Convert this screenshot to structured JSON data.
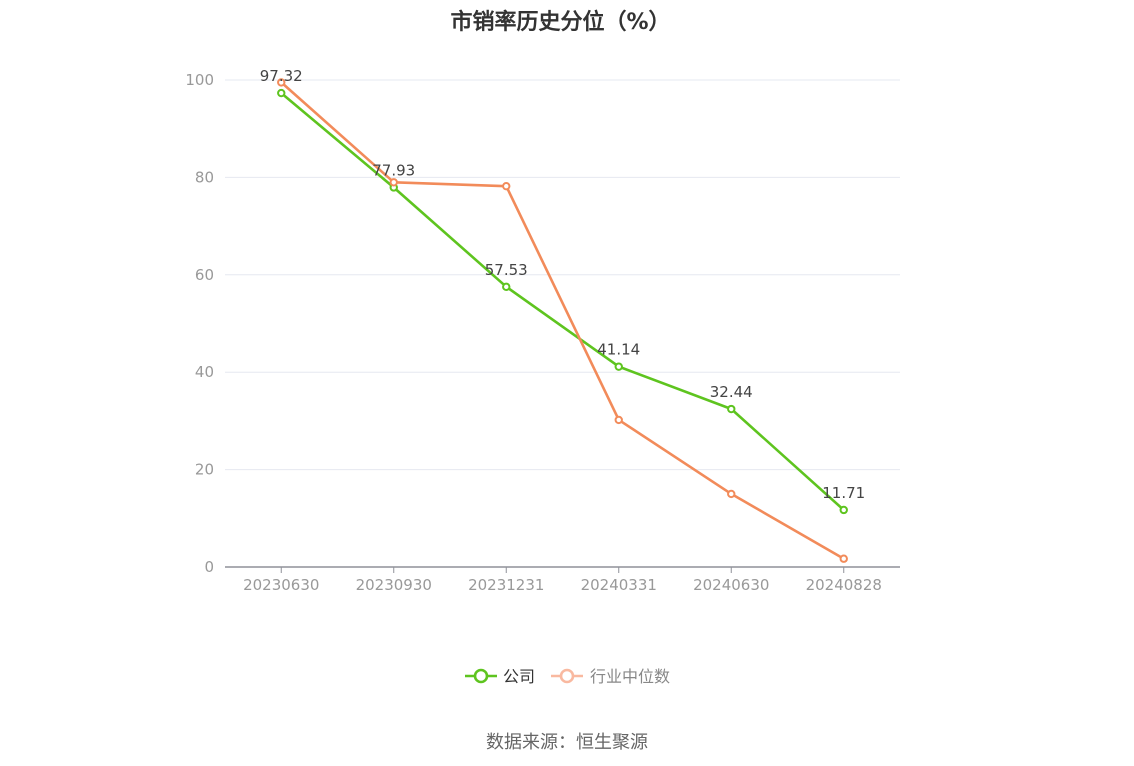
{
  "chart_data": {
    "type": "line",
    "title": "市销率历史分位（%）",
    "categories": [
      "20230630",
      "20230930",
      "20231231",
      "20240331",
      "20240630",
      "20240828"
    ],
    "ylim": [
      0,
      100
    ],
    "yticks": [
      0,
      20,
      40,
      60,
      80,
      100
    ],
    "grid": true,
    "legend_position": "bottom-center",
    "series": [
      {
        "name": "公司",
        "color": "#5ec41f",
        "values": [
          97.32,
          77.93,
          57.53,
          41.14,
          32.44,
          11.71
        ],
        "show_labels": true
      },
      {
        "name": "行业中位数",
        "color": "#f28b5a",
        "legend_color": "#f9b9a0",
        "values": [
          99.5,
          79.0,
          78.2,
          30.2,
          15.0,
          1.7
        ],
        "show_labels": false
      }
    ]
  },
  "source": "数据来源：恒生聚源"
}
